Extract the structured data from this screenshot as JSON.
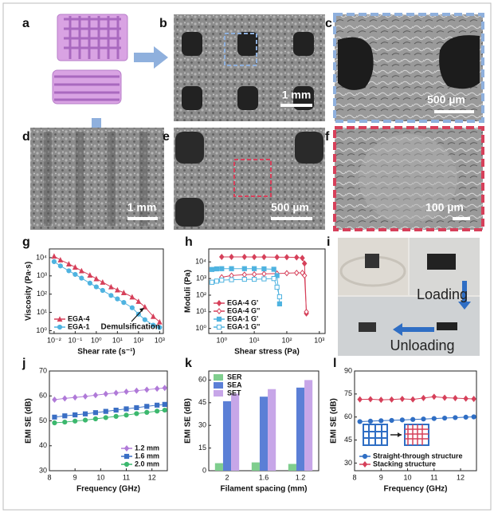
{
  "panels": {
    "labels": [
      "a",
      "b",
      "c",
      "d",
      "e",
      "f",
      "g",
      "h",
      "i",
      "j",
      "k",
      "l"
    ],
    "scale_bars": {
      "b": "1 mm",
      "c": "500 µm",
      "d": "1 mm",
      "e": "500 µm",
      "f": "100 µm"
    },
    "photo_i": {
      "loading": "Loading",
      "unloading": "Unloading"
    }
  },
  "chart_data": [
    {
      "type": "line",
      "panel": "g",
      "x_label": "Shear rate (s⁻¹)",
      "y_label": "Viscosity (Pa·s)",
      "log_x": true,
      "log_y": true,
      "xlim": [
        0.006,
        1500
      ],
      "ylim": [
        0.7,
        30000
      ],
      "xticks": [
        {
          "value": 0.01,
          "label": "10⁻²"
        },
        {
          "value": 0.1,
          "label": "10⁻¹"
        },
        {
          "value": 1,
          "label": "10⁰"
        },
        {
          "value": 10,
          "label": "10¹"
        },
        {
          "value": 100,
          "label": "10²"
        },
        {
          "value": 1000,
          "label": "10³"
        }
      ],
      "yticks": [
        {
          "value": 1,
          "label": "10⁰"
        },
        {
          "value": 10,
          "label": "10¹"
        },
        {
          "value": 100,
          "label": "10²"
        },
        {
          "value": 1000,
          "label": "10³"
        },
        {
          "value": 10000,
          "label": "10⁴"
        }
      ],
      "legend": "lower left",
      "annotation": "Demulsification",
      "series": [
        {
          "name": "EGA-4",
          "color": "#d6405a",
          "marker": "triangle",
          "x": [
            0.01,
            0.02,
            0.05,
            0.1,
            0.2,
            0.5,
            1,
            2,
            5,
            10,
            20,
            50,
            100,
            200,
            500,
            1000
          ],
          "values": [
            12000,
            7500,
            4500,
            3000,
            1900,
            1100,
            700,
            450,
            250,
            170,
            120,
            70,
            40,
            20,
            6,
            3
          ]
        },
        {
          "name": "EGA-1",
          "color": "#4fb3e0",
          "marker": "circle",
          "x": [
            0.01,
            0.02,
            0.05,
            0.1,
            0.2,
            0.5,
            1,
            2,
            5,
            10,
            20,
            50,
            100,
            200,
            500,
            1000
          ],
          "values": [
            6000,
            3500,
            1900,
            1200,
            750,
            400,
            250,
            160,
            85,
            55,
            35,
            18,
            8,
            4,
            2,
            1.5
          ]
        }
      ]
    },
    {
      "type": "line",
      "panel": "h",
      "x_label": "Shear stress (Pa)",
      "y_label": "Moduli (Pa)",
      "log_x": true,
      "log_y": true,
      "xlim": [
        0.4,
        1500
      ],
      "ylim": [
        0.5,
        60000
      ],
      "xticks": [
        {
          "value": 1,
          "label": "10⁰"
        },
        {
          "value": 10,
          "label": "10¹"
        },
        {
          "value": 100,
          "label": "10²"
        },
        {
          "value": 1000,
          "label": "10³"
        }
      ],
      "yticks": [
        {
          "value": 1,
          "label": "10⁰"
        },
        {
          "value": 10,
          "label": "10¹"
        },
        {
          "value": 100,
          "label": "10²"
        },
        {
          "value": 1000,
          "label": "10³"
        },
        {
          "value": 10000,
          "label": "10⁴"
        }
      ],
      "legend": "lower left",
      "series": [
        {
          "name": "EGA-4 G'",
          "color": "#d6405a",
          "marker": "diamond",
          "x": [
            1,
            2,
            5,
            10,
            20,
            50,
            100,
            200,
            300,
            350,
            400
          ],
          "values": [
            20000,
            20000,
            20000,
            19500,
            19500,
            19000,
            19000,
            18500,
            17000,
            8000,
            8
          ]
        },
        {
          "name": "EGA-4 G''",
          "color": "#d6405a",
          "marker": "diamond-open",
          "x": [
            1,
            2,
            5,
            10,
            20,
            50,
            100,
            200,
            300,
            350,
            400
          ],
          "values": [
            1200,
            1500,
            1700,
            1800,
            1900,
            2000,
            2100,
            2200,
            2200,
            1500,
            10
          ]
        },
        {
          "name": "EGA-1 G'",
          "color": "#4fb3e0",
          "marker": "square",
          "x": [
            0.5,
            0.7,
            1,
            2,
            5,
            10,
            20,
            40,
            50,
            60
          ],
          "values": [
            3500,
            3800,
            3900,
            3900,
            3900,
            3900,
            3800,
            3600,
            1500,
            30
          ]
        },
        {
          "name": "EGA-1 G''",
          "color": "#4fb3e0",
          "marker": "square-open",
          "x": [
            0.5,
            0.7,
            1,
            2,
            5,
            10,
            20,
            40,
            50,
            60
          ],
          "values": [
            600,
            700,
            800,
            850,
            900,
            900,
            950,
            1000,
            300,
            80
          ]
        }
      ]
    },
    {
      "type": "line",
      "panel": "j",
      "x_label": "Frequency (GHz)",
      "y_label": "EMI SE (dB)",
      "xlim": [
        8,
        12.6
      ],
      "ylim": [
        30,
        70
      ],
      "xticks": [
        8,
        9,
        10,
        11,
        12
      ],
      "yticks": [
        30,
        40,
        50,
        60,
        70
      ],
      "legend": "lower right",
      "x": [
        8.2,
        8.6,
        9,
        9.4,
        9.8,
        10.2,
        10.6,
        11,
        11.4,
        11.8,
        12.2,
        12.5
      ],
      "series": [
        {
          "name": "1.2 mm",
          "color": "#b07ad8",
          "marker": "diamond",
          "values": [
            58.5,
            59,
            59.4,
            59.8,
            60.3,
            60.8,
            61.2,
            61.7,
            62.1,
            62.5,
            62.9,
            63.2
          ]
        },
        {
          "name": "1.6 mm",
          "color": "#3a6fc4",
          "marker": "square",
          "values": [
            51.5,
            52,
            52.4,
            52.8,
            53.3,
            53.8,
            54.3,
            54.8,
            55.3,
            55.8,
            56.3,
            56.6
          ]
        },
        {
          "name": "2.0 mm",
          "color": "#3cb86e",
          "marker": "circle",
          "values": [
            49.2,
            49.5,
            49.9,
            50.3,
            50.8,
            51.3,
            51.8,
            52.3,
            52.9,
            53.4,
            53.9,
            54.3
          ]
        }
      ]
    },
    {
      "type": "bar",
      "panel": "k",
      "x_label": "Filament spacing (mm)",
      "y_label": "EMI SE (dB)",
      "categories": [
        "2",
        "1.6",
        "1.2"
      ],
      "ylim": [
        0,
        66
      ],
      "yticks": [
        0,
        15,
        30,
        45,
        60
      ],
      "legend": "upper left",
      "series": [
        {
          "name": "SER",
          "color": "#7fce8e",
          "values": [
            5,
            5.5,
            4.5
          ]
        },
        {
          "name": "SEA",
          "color": "#5b7fd6",
          "values": [
            46,
            49,
            55
          ]
        },
        {
          "name": "SET",
          "color": "#c7a6e8",
          "values": [
            51,
            54,
            60
          ]
        }
      ]
    },
    {
      "type": "line",
      "panel": "l",
      "x_label": "Frequency (GHz)",
      "y_label": "EMI SE (dB)",
      "xlim": [
        8,
        12.6
      ],
      "ylim": [
        25,
        90
      ],
      "xticks": [
        8,
        9,
        10,
        11,
        12
      ],
      "yticks": [
        30,
        45,
        60,
        75,
        90
      ],
      "legend": "lower left",
      "x": [
        8.2,
        8.6,
        9,
        9.4,
        9.8,
        10.2,
        10.6,
        11,
        11.4,
        11.8,
        12.2,
        12.5
      ],
      "series": [
        {
          "name": "Straight-through structure",
          "color": "#2f6ec4",
          "marker": "circle",
          "values": [
            57,
            57.3,
            57.6,
            57.8,
            58.1,
            58.4,
            58.7,
            59,
            59.3,
            59.6,
            59.9,
            60.1
          ]
        },
        {
          "name": "Stacking structure",
          "color": "#d6405a",
          "marker": "diamond",
          "values": [
            71.5,
            71.6,
            71.2,
            71.4,
            71.8,
            71.5,
            72.4,
            73.2,
            72.6,
            72.3,
            72.0,
            71.8
          ]
        }
      ]
    }
  ]
}
